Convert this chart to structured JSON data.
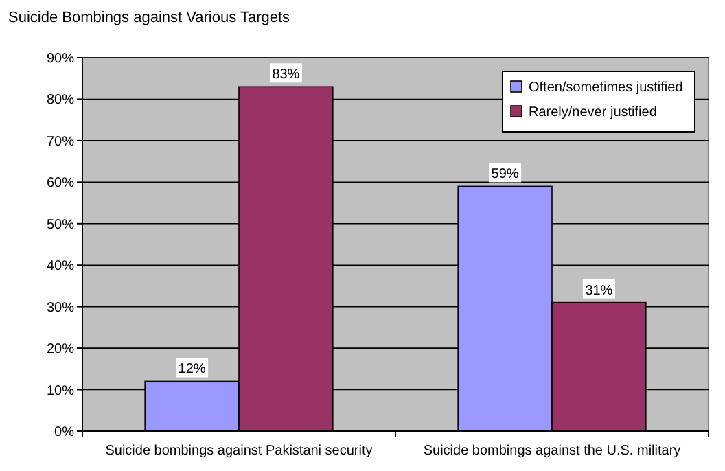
{
  "chart_data": {
    "type": "bar",
    "title": "Suicide Bombings against Various Targets",
    "categories": [
      "Suicide bombings against Pakistani security",
      "Suicide bombings against the U.S. military"
    ],
    "series": [
      {
        "name": "Often/sometimes justified",
        "color": "#9999ff",
        "values": [
          12,
          59
        ],
        "value_labels": [
          "12%",
          "59%"
        ]
      },
      {
        "name": "Rarely/never justified",
        "color": "#993366",
        "values": [
          83,
          31
        ],
        "value_labels": [
          "83%",
          "31%"
        ]
      }
    ],
    "ylim": [
      0,
      90
    ],
    "yticks": [
      {
        "value": 0,
        "label": "0%"
      },
      {
        "value": 10,
        "label": "10%"
      },
      {
        "value": 20,
        "label": "20%"
      },
      {
        "value": 30,
        "label": "30%"
      },
      {
        "value": 40,
        "label": "40%"
      },
      {
        "value": 50,
        "label": "50%"
      },
      {
        "value": 60,
        "label": "60%"
      },
      {
        "value": 70,
        "label": "70%"
      },
      {
        "value": 80,
        "label": "80%"
      },
      {
        "value": 90,
        "label": "90%"
      }
    ],
    "grid": "y",
    "legend": "top right"
  }
}
